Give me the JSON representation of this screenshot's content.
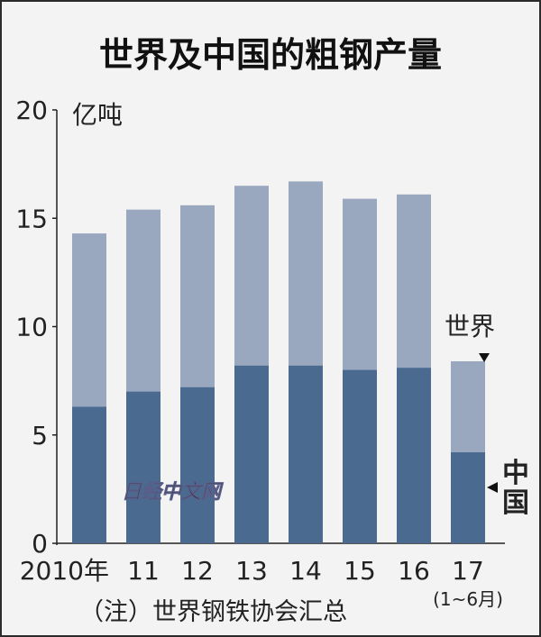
{
  "chart_data": {
    "type": "bar",
    "title": "世界及中国的粗钢产量",
    "ylabel": "亿吨",
    "ylim": [
      0,
      20
    ],
    "yticks": [
      0,
      5,
      10,
      15,
      20
    ],
    "categories": [
      "2010年",
      "11",
      "12",
      "13",
      "14",
      "15",
      "16",
      "17"
    ],
    "category_sublabels": [
      "",
      "",
      "",
      "",
      "",
      "",
      "",
      "(1~6月)"
    ],
    "series": [
      {
        "name": "世界",
        "values": [
          14.3,
          15.4,
          15.6,
          16.5,
          16.7,
          15.9,
          16.1,
          8.4
        ],
        "color": "#9aa8bf"
      },
      {
        "name": "中国",
        "values": [
          6.3,
          7.0,
          7.2,
          8.2,
          8.2,
          8.0,
          8.1,
          4.2
        ],
        "color": "#4a6a90"
      }
    ],
    "annotations": [
      "世界",
      "中国"
    ],
    "watermark": "日经中文网",
    "note": "（注）世界钢铁协会汇总",
    "grid": false
  }
}
